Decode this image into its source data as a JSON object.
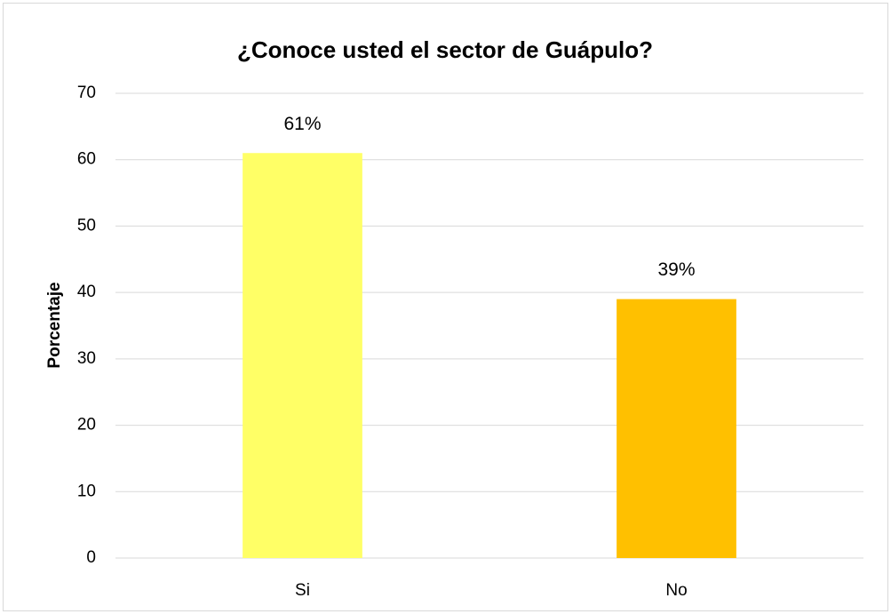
{
  "chart_data": {
    "type": "bar",
    "title": "¿Conoce usted el sector de Guápulo?",
    "y_label": "Porcentaje",
    "categories": [
      "Si",
      "No"
    ],
    "values": [
      61,
      39
    ],
    "value_labels": [
      "61%",
      "39%"
    ],
    "colors": [
      "#ffff66",
      "#ffc000"
    ],
    "ylim": [
      0,
      70
    ],
    "yticks": [
      0,
      10,
      20,
      30,
      40,
      50,
      60,
      70
    ],
    "grid": true
  }
}
